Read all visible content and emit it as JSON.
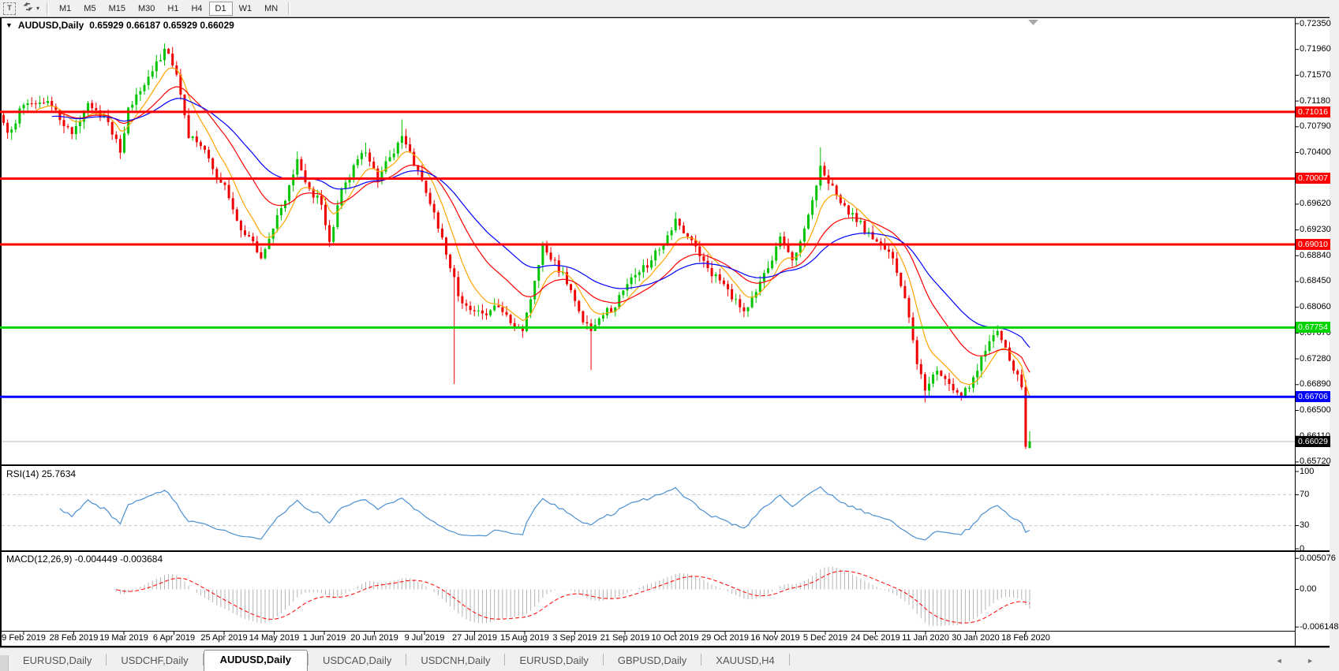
{
  "toolbar": {
    "text_tool_label": "T",
    "symbols_button_caret": "▾",
    "timeframes": [
      "M1",
      "M5",
      "M15",
      "M30",
      "H1",
      "H4",
      "D1",
      "W1",
      "MN"
    ],
    "active_timeframe": "D1"
  },
  "chart": {
    "title_arrow": "▼",
    "title_symbol": "AUDUSD,Daily",
    "ohlc_text": "0.65929 0.66187 0.65929 0.66029",
    "ohlc": {
      "open": "0.65929",
      "high": "0.66187",
      "low": "0.65929",
      "close": "0.66029"
    },
    "price_axis_ticks": [
      "0.72350",
      "0.71960",
      "0.71570",
      "0.71180",
      "0.70790",
      "0.70400",
      "0.69620",
      "0.69230",
      "0.68840",
      "0.68450",
      "0.68060",
      "0.67670",
      "0.67280",
      "0.66890",
      "0.66500",
      "0.66110",
      "0.65720"
    ],
    "hlines": [
      {
        "price": "0.71016",
        "value": 0.71016,
        "color": "#ff0000"
      },
      {
        "price": "0.70007",
        "value": 0.70007,
        "color": "#ff0000"
      },
      {
        "price": "0.69010",
        "value": 0.6901,
        "color": "#ff0000"
      },
      {
        "price": "0.67754",
        "value": 0.67754,
        "color": "#00d400"
      },
      {
        "price": "0.66706",
        "value": 0.66706,
        "color": "#0000ff"
      }
    ],
    "current_price": {
      "price": "0.66029",
      "value": 0.66029,
      "badge_bg": "#000000",
      "line_color": "#b8b8b8"
    },
    "dates": [
      "9 Feb 2019",
      "28 Feb 2019",
      "19 Mar 2019",
      "6 Apr 2019",
      "25 Apr 2019",
      "14 May 2019",
      "1 Jun 2019",
      "20 Jun 2019",
      "9 Jul 2019",
      "27 Jul 2019",
      "15 Aug 2019",
      "3 Sep 2019",
      "21 Sep 2019",
      "10 Oct 2019",
      "29 Oct 2019",
      "16 Nov 2019",
      "5 Dec 2019",
      "24 Dec 2019",
      "11 Jan 2020",
      "30 Jan 2020",
      "18 Feb 2020"
    ]
  },
  "rsi": {
    "label": "RSI(14)",
    "value": "25.7634",
    "axis_ticks": [
      "100",
      "70",
      "30",
      "0"
    ],
    "dashed_levels": [
      70,
      30
    ],
    "line_color": "#4a90d2"
  },
  "macd": {
    "label": "MACD(12,26,9)",
    "value": "-0.004449 -0.003684",
    "axis_ticks": [
      "0.005076",
      "0.00",
      "-0.006148"
    ],
    "histogram_color": "#b4b4b4",
    "signal_color": "#ff0000"
  },
  "tabs": {
    "items": [
      "EURUSD,Daily",
      "USDCHF,Daily",
      "AUDUSD,Daily",
      "USDCAD,Daily",
      "USDCNH,Daily",
      "EURUSD,Daily",
      "GBPUSD,Daily",
      "XAUUSD,H4"
    ],
    "active_index": 2,
    "scroll_arrows": "◄ ►"
  },
  "chart_data": {
    "type": "candlestick",
    "symbol": "AUDUSD",
    "timeframe": "Daily",
    "approximate": true,
    "num_candles": 256,
    "candle_up_color": "#00c400",
    "candle_down_color": "#ee0000",
    "y_axis": {
      "top_price": 0.72422,
      "bottom_price": 0.6567,
      "tick_step": 0.0039
    },
    "price_anchors": [
      [
        0,
        0.7085
      ],
      [
        1,
        0.707
      ],
      [
        5,
        0.7112
      ],
      [
        11,
        0.7118
      ],
      [
        17,
        0.7068
      ],
      [
        21,
        0.7115
      ],
      [
        26,
        0.7086
      ],
      [
        29,
        0.704
      ],
      [
        31,
        0.7108
      ],
      [
        33,
        0.7128
      ],
      [
        37,
        0.7163
      ],
      [
        40,
        0.7197
      ],
      [
        43,
        0.7158
      ],
      [
        46,
        0.7062
      ],
      [
        49,
        0.705
      ],
      [
        52,
        0.7015
      ],
      [
        55,
        0.6991
      ],
      [
        58,
        0.6937
      ],
      [
        61,
        0.6913
      ],
      [
        64,
        0.688
      ],
      [
        67,
        0.6925
      ],
      [
        70,
        0.6967
      ],
      [
        73,
        0.703
      ],
      [
        76,
        0.6985
      ],
      [
        79,
        0.6961
      ],
      [
        81,
        0.6905
      ],
      [
        84,
        0.6985
      ],
      [
        87,
        0.7021
      ],
      [
        90,
        0.704
      ],
      [
        93,
        0.6997
      ],
      [
        96,
        0.7033
      ],
      [
        99,
        0.7065
      ],
      [
        102,
        0.7021
      ],
      [
        105,
        0.6979
      ],
      [
        108,
        0.6925
      ],
      [
        111,
        0.6865
      ],
      [
        114,
        0.6812
      ],
      [
        117,
        0.68
      ],
      [
        120,
        0.6794
      ],
      [
        123,
        0.6806
      ],
      [
        126,
        0.6782
      ],
      [
        129,
        0.677
      ],
      [
        131,
        0.6818
      ],
      [
        134,
        0.69
      ],
      [
        137,
        0.6877
      ],
      [
        140,
        0.6841
      ],
      [
        143,
        0.68
      ],
      [
        146,
        0.677
      ],
      [
        149,
        0.6794
      ],
      [
        152,
        0.6806
      ],
      [
        155,
        0.6841
      ],
      [
        158,
        0.6859
      ],
      [
        161,
        0.6877
      ],
      [
        164,
        0.6901
      ],
      [
        167,
        0.694
      ],
      [
        170,
        0.6913
      ],
      [
        173,
        0.6883
      ],
      [
        176,
        0.6853
      ],
      [
        179,
        0.6841
      ],
      [
        181,
        0.6818
      ],
      [
        184,
        0.68
      ],
      [
        187,
        0.6829
      ],
      [
        190,
        0.6865
      ],
      [
        193,
        0.6913
      ],
      [
        196,
        0.6877
      ],
      [
        199,
        0.6925
      ],
      [
        202,
        0.699
      ],
      [
        203,
        0.702
      ],
      [
        206,
        0.699
      ],
      [
        209,
        0.696
      ],
      [
        212,
        0.6935
      ],
      [
        215,
        0.692
      ],
      [
        218,
        0.69
      ],
      [
        221,
        0.688
      ],
      [
        224,
        0.682
      ],
      [
        227,
        0.672
      ],
      [
        229,
        0.668
      ],
      [
        232,
        0.671
      ],
      [
        235,
        0.669
      ],
      [
        238,
        0.667
      ],
      [
        241,
        0.67
      ],
      [
        244,
        0.674
      ],
      [
        247,
        0.677
      ],
      [
        249,
        0.6745
      ],
      [
        251,
        0.671
      ],
      [
        253,
        0.6685
      ],
      [
        254,
        0.6595
      ],
      [
        255,
        0.66029
      ]
    ],
    "wick_overrides": [
      [
        40,
        "h",
        0.7205
      ],
      [
        73,
        "h",
        0.7042
      ],
      [
        90,
        "h",
        0.7055
      ],
      [
        99,
        "h",
        0.709
      ],
      [
        112,
        "l",
        0.669
      ],
      [
        146,
        "l",
        0.6711
      ],
      [
        203,
        "h",
        0.7048
      ],
      [
        229,
        "l",
        0.6662
      ]
    ],
    "last_candle": {
      "open": 0.65929,
      "high": 0.66187,
      "low": 0.65929,
      "close": 0.66029
    },
    "moving_averages": [
      {
        "type": "ema",
        "period": 8,
        "color": "#ffa500"
      },
      {
        "type": "ema",
        "period": 21,
        "color": "#ff0000"
      },
      {
        "type": "ema",
        "period": 40,
        "color": "#0000ff"
      }
    ],
    "rsi": {
      "period": 14,
      "current": 25.7634,
      "scale": [
        0,
        100
      ]
    },
    "macd": {
      "fast": 12,
      "slow": 26,
      "signal": 9,
      "current_macd": -0.004449,
      "current_signal": -0.003684,
      "scale": [
        -0.006148,
        0.005076
      ]
    }
  }
}
